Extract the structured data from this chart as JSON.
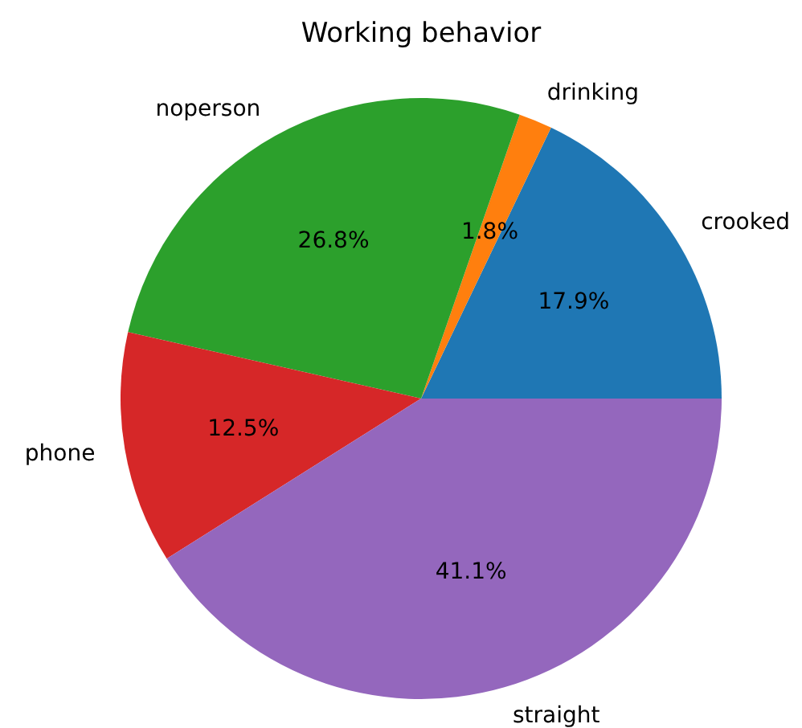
{
  "chart_data": {
    "type": "pie",
    "title": "Working behavior",
    "categories": [
      "crooked",
      "drinking",
      "noperson",
      "phone",
      "straight"
    ],
    "values": [
      17.9,
      1.8,
      26.8,
      12.5,
      41.1
    ],
    "colors": [
      "#1f77b4",
      "#ff7f0e",
      "#2ca02c",
      "#d62728",
      "#9467bd"
    ],
    "value_labels": [
      "17.9%",
      "1.8%",
      "26.8%",
      "12.5%",
      "41.1%"
    ]
  }
}
